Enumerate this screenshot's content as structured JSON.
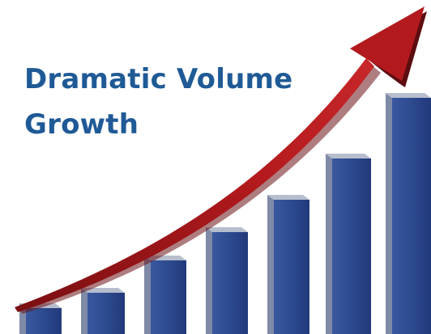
{
  "headline": {
    "line1": "Dramatic Volume",
    "line2": "Growth"
  },
  "graphic": {
    "bar_levels": [
      0.08,
      0.13,
      0.23,
      0.32,
      0.42,
      0.55,
      0.74
    ],
    "colors": {
      "bar_front": "#2d4a8f",
      "bar_side": "#7f8aa6",
      "bar_top": "#b6bdcc",
      "arrow": "#b31a1d",
      "arrow_shadow": "#5c0d10",
      "text": "#1f5a96"
    },
    "icons": [
      "rising-arrow-icon"
    ]
  }
}
